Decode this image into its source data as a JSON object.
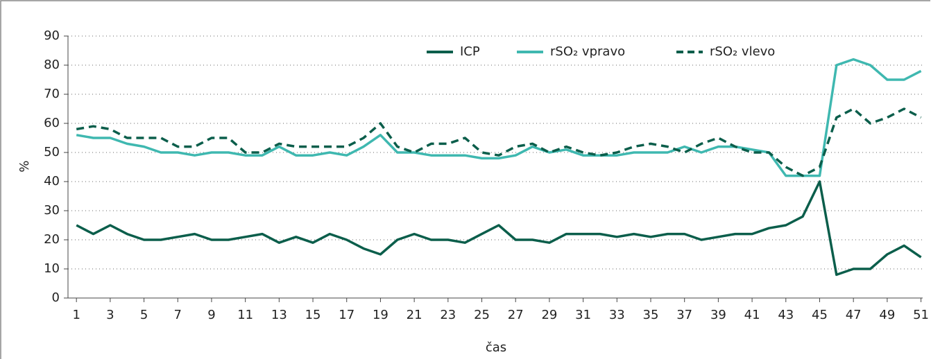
{
  "chart_data": {
    "type": "line",
    "x_label": "čas",
    "y_label": "%",
    "x": [
      1,
      2,
      3,
      4,
      5,
      6,
      7,
      8,
      9,
      10,
      11,
      12,
      13,
      14,
      15,
      16,
      17,
      18,
      19,
      20,
      21,
      22,
      23,
      24,
      25,
      26,
      27,
      28,
      29,
      30,
      31,
      32,
      33,
      34,
      35,
      36,
      37,
      38,
      39,
      40,
      41,
      42,
      43,
      44,
      45,
      46,
      47,
      48,
      49,
      50,
      51
    ],
    "xlim": [
      0.5,
      51.1
    ],
    "xticks": [
      1,
      3,
      5,
      7,
      9,
      11,
      13,
      15,
      17,
      19,
      21,
      23,
      25,
      27,
      29,
      31,
      33,
      35,
      37,
      39,
      41,
      43,
      45,
      47,
      49,
      51
    ],
    "ylim": [
      0,
      90
    ],
    "yticks": [
      0,
      10,
      20,
      30,
      40,
      50,
      60,
      70,
      80,
      90
    ],
    "grid": true,
    "legend": "top-right",
    "series": [
      {
        "name": "ICP",
        "color": "#0b5e4b",
        "dashed": false,
        "values": [
          25,
          22,
          25,
          22,
          20,
          20,
          21,
          22,
          20,
          20,
          21,
          22,
          19,
          21,
          19,
          22,
          20,
          17,
          15,
          20,
          22,
          20,
          20,
          19,
          22,
          25,
          20,
          20,
          19,
          22,
          22,
          22,
          21,
          22,
          21,
          22,
          22,
          20,
          21,
          22,
          22,
          24,
          25,
          28,
          40,
          8,
          10,
          10,
          15,
          18,
          14
        ]
      },
      {
        "name": "rSO₂ vpravo",
        "color": "#3fb8b0",
        "dashed": false,
        "values": [
          56,
          55,
          55,
          53,
          52,
          50,
          50,
          49,
          50,
          50,
          49,
          49,
          52,
          49,
          49,
          50,
          49,
          52,
          56,
          50,
          50,
          49,
          49,
          49,
          48,
          48,
          49,
          52,
          50,
          51,
          49,
          49,
          49,
          50,
          50,
          50,
          52,
          50,
          52,
          52,
          51,
          50,
          42,
          42,
          42,
          80,
          82,
          80,
          75,
          75,
          78
        ]
      },
      {
        "name": "rSO₂ vlevo",
        "color": "#0b5e4b",
        "dashed": true,
        "values": [
          58,
          59,
          58,
          55,
          55,
          55,
          52,
          52,
          55,
          55,
          50,
          50,
          53,
          52,
          52,
          52,
          52,
          55,
          60,
          52,
          50,
          53,
          53,
          55,
          50,
          49,
          52,
          53,
          50,
          52,
          50,
          49,
          50,
          52,
          53,
          52,
          50,
          53,
          55,
          52,
          50,
          50,
          45,
          42,
          45,
          62,
          65,
          60,
          62,
          65,
          62
        ]
      }
    ]
  }
}
